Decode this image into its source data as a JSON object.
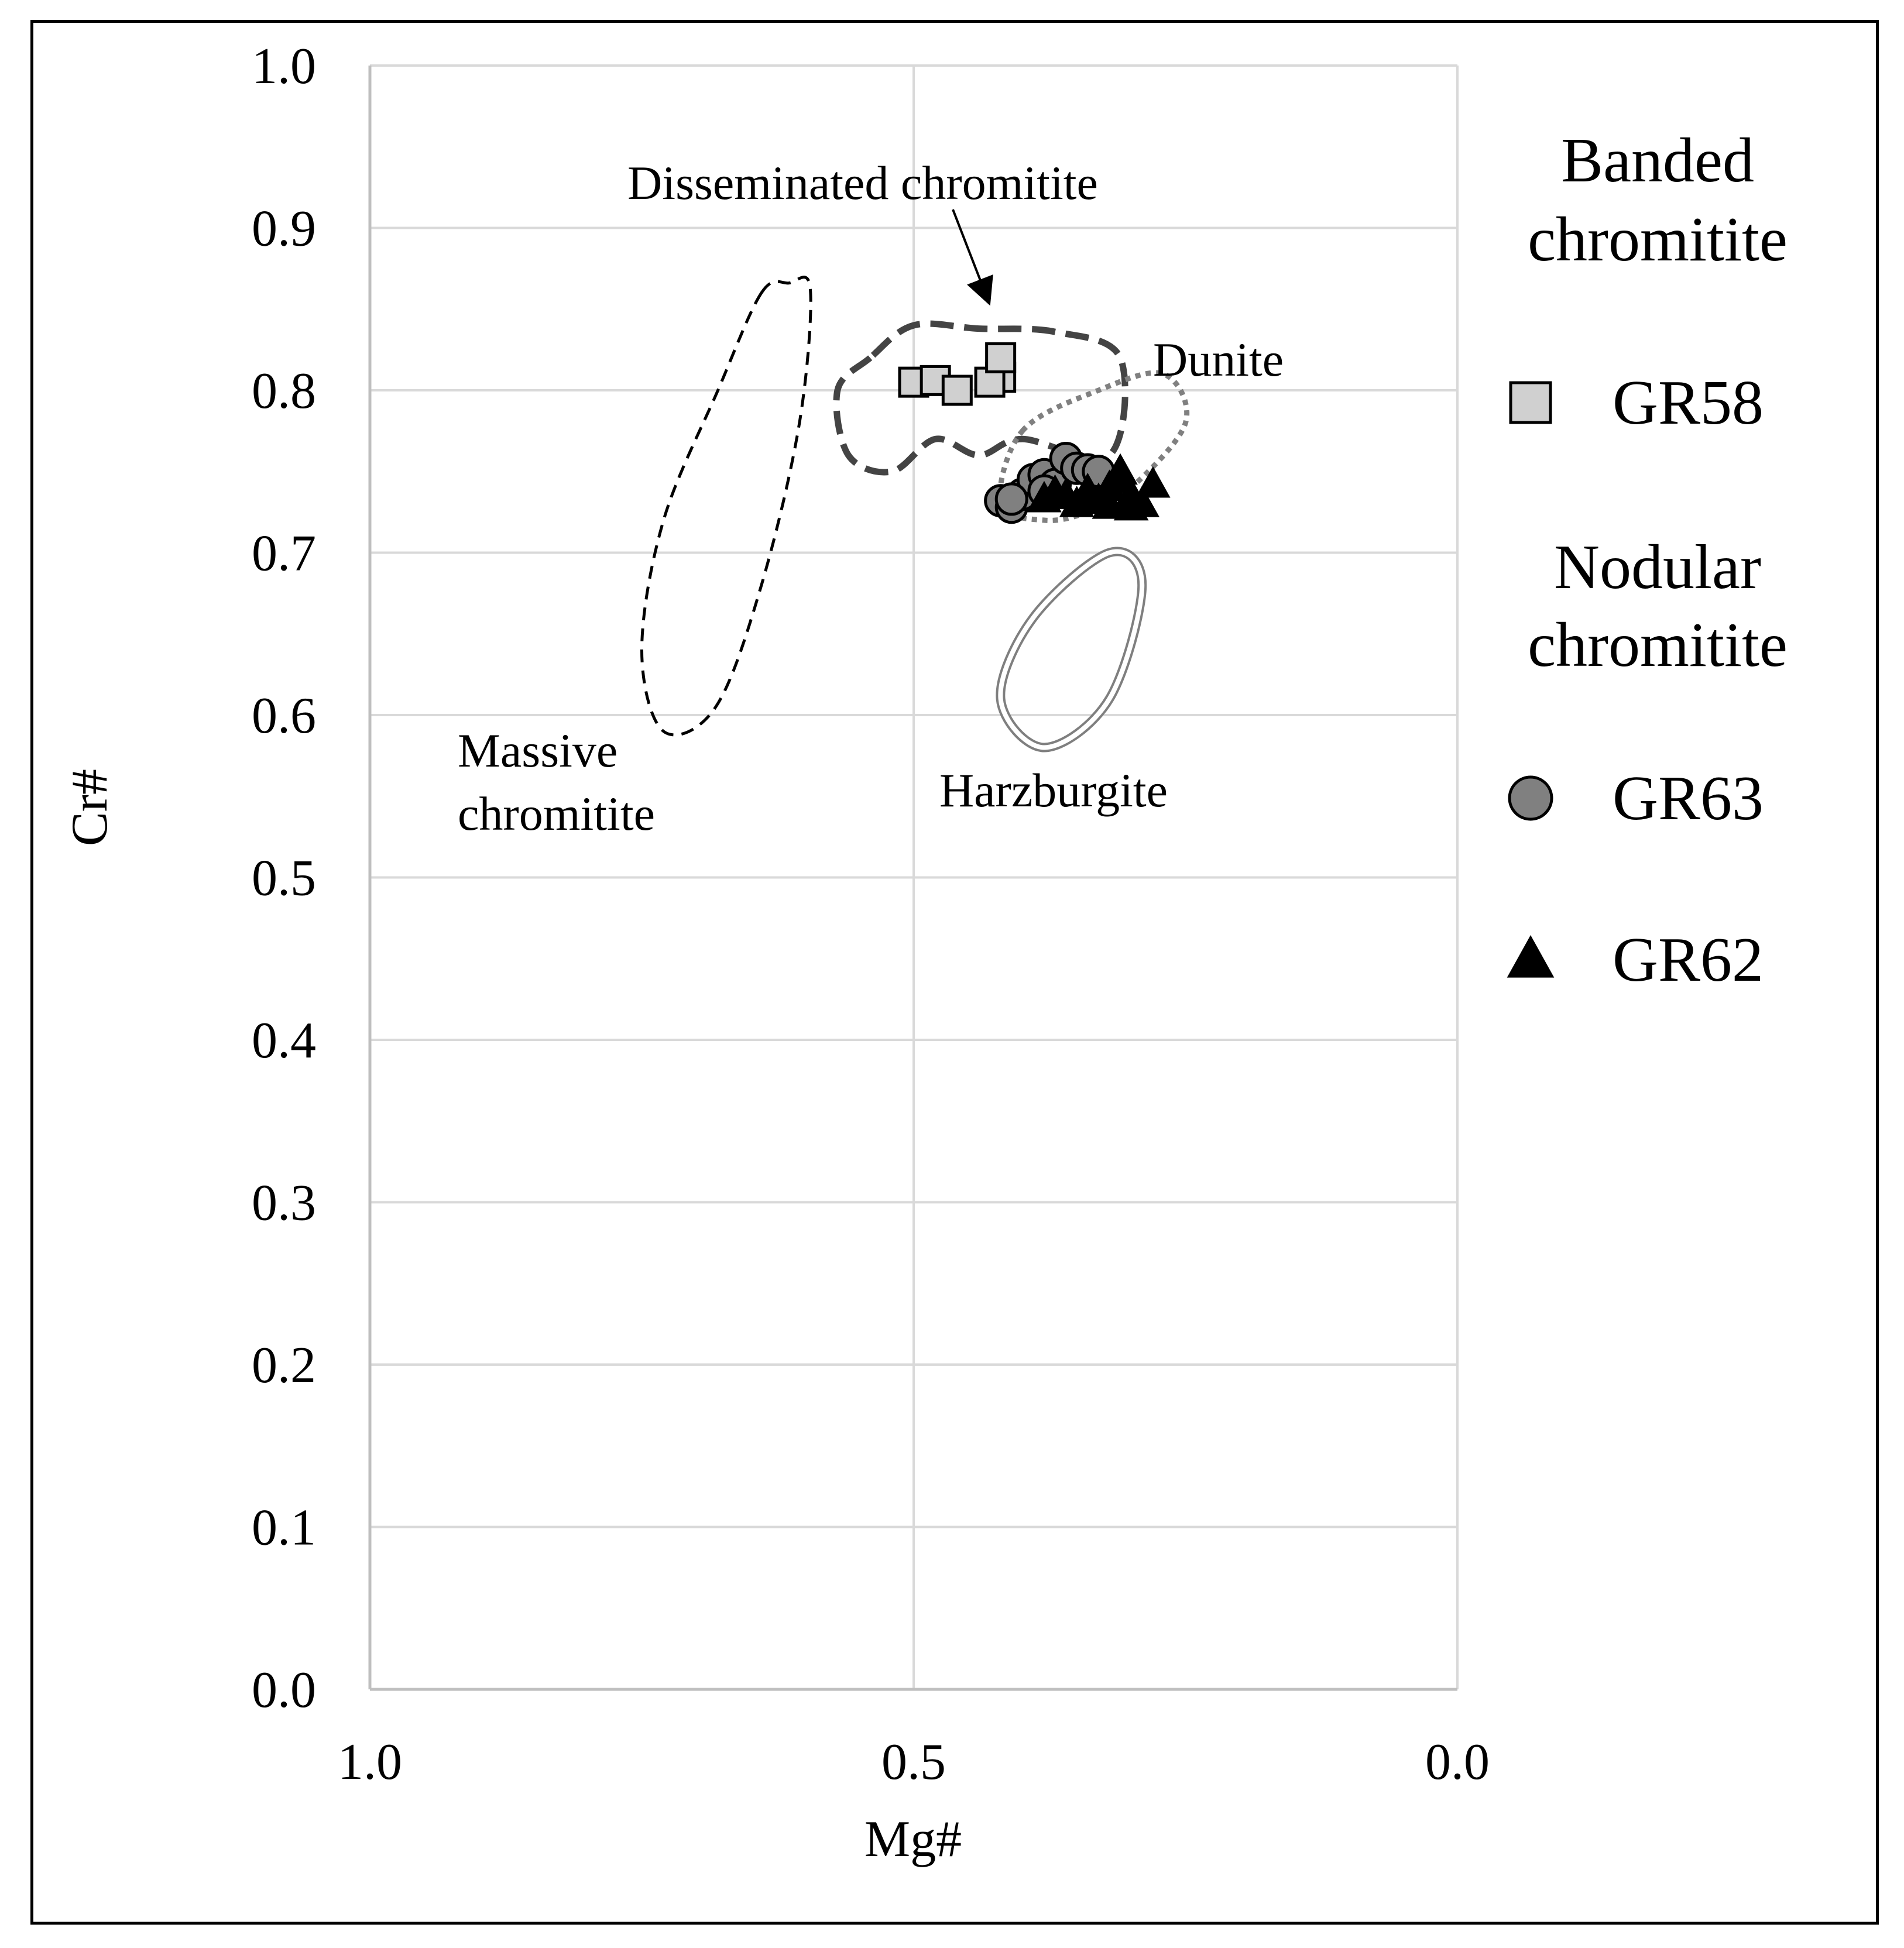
{
  "chart_data": {
    "type": "scatter",
    "title": "",
    "xlabel": "Mg#",
    "ylabel": "Cr#",
    "xlim": [
      1.0,
      0.0
    ],
    "ylim": [
      0.0,
      1.0
    ],
    "x_reversed": true,
    "x_ticks": [
      1.0,
      0.5,
      0.0
    ],
    "x_tick_labels": [
      "1.0",
      "0.5",
      "0.0"
    ],
    "y_ticks": [
      0.0,
      0.1,
      0.2,
      0.3,
      0.4,
      0.5,
      0.6,
      0.7,
      0.8,
      0.9,
      1.0
    ],
    "y_tick_labels": [
      "0.0",
      "0.1",
      "0.2",
      "0.3",
      "0.4",
      "0.5",
      "0.6",
      "0.7",
      "0.8",
      "0.9",
      "1.0"
    ],
    "grid": true,
    "legend": {
      "position": "right",
      "groups": [
        {
          "heading": [
            "Banded",
            "chromitite"
          ],
          "entries": [
            {
              "name": "GR58",
              "marker": "square",
              "color": "#d0d0d0"
            }
          ]
        },
        {
          "heading": [
            "Nodular",
            "chromitite"
          ],
          "entries": [
            {
              "name": "GR63",
              "marker": "circle",
              "color": "#808080"
            },
            {
              "name": "GR62",
              "marker": "triangle",
              "color": "#000000"
            }
          ]
        }
      ]
    },
    "series": [
      {
        "name": "GR58",
        "marker": "square",
        "color": "#d0d0d0",
        "x": [
          0.5,
          0.48,
          0.46,
          0.42,
          0.43,
          0.42
        ],
        "y": [
          0.805,
          0.806,
          0.8,
          0.808,
          0.805,
          0.82
        ]
      },
      {
        "name": "GR63",
        "marker": "circle",
        "color": "#808080",
        "x": [
          0.42,
          0.41,
          0.4,
          0.39,
          0.38,
          0.37,
          0.36,
          0.35,
          0.34,
          0.33,
          0.41,
          0.38
        ],
        "y": [
          0.732,
          0.728,
          0.736,
          0.745,
          0.748,
          0.742,
          0.758,
          0.752,
          0.751,
          0.75,
          0.733,
          0.738
        ]
      },
      {
        "name": "GR62",
        "marker": "triangle",
        "color": "#000000",
        "x": [
          0.38,
          0.37,
          0.36,
          0.35,
          0.34,
          0.33,
          0.32,
          0.31,
          0.3,
          0.29,
          0.28,
          0.32,
          0.3,
          0.31
        ],
        "y": [
          0.733,
          0.737,
          0.735,
          0.73,
          0.738,
          0.732,
          0.729,
          0.75,
          0.735,
          0.73,
          0.742,
          0.74,
          0.728,
          0.745
        ]
      }
    ],
    "fields": [
      {
        "name": "Massive chromitite",
        "label": [
          "Massive",
          "chromitite"
        ],
        "line": "dashed",
        "points": [
          [
            0.64,
            0.86
          ],
          [
            0.615,
            0.866
          ],
          [
            0.595,
            0.862
          ],
          [
            0.605,
            0.78
          ],
          [
            0.64,
            0.68
          ],
          [
            0.682,
            0.605
          ],
          [
            0.73,
            0.59
          ],
          [
            0.75,
            0.64
          ],
          [
            0.73,
            0.72
          ],
          [
            0.68,
            0.8
          ]
        ]
      },
      {
        "name": "Disseminated chromitite",
        "label": [
          "Disseminated chromitite"
        ],
        "line": "thick-dashed",
        "points": [
          [
            0.54,
            0.82
          ],
          [
            0.57,
            0.8
          ],
          [
            0.56,
            0.76
          ],
          [
            0.52,
            0.75
          ],
          [
            0.48,
            0.77
          ],
          [
            0.44,
            0.76
          ],
          [
            0.4,
            0.77
          ],
          [
            0.32,
            0.76
          ],
          [
            0.31,
            0.82
          ],
          [
            0.37,
            0.836
          ],
          [
            0.44,
            0.838
          ],
          [
            0.5,
            0.84
          ]
        ]
      },
      {
        "name": "Dunite",
        "label": [
          "Dunite"
        ],
        "line": "dotted",
        "points": [
          [
            0.4,
            0.775
          ],
          [
            0.33,
            0.8
          ],
          [
            0.27,
            0.81
          ],
          [
            0.25,
            0.78
          ],
          [
            0.3,
            0.74
          ],
          [
            0.34,
            0.725
          ],
          [
            0.38,
            0.72
          ],
          [
            0.42,
            0.73
          ]
        ]
      },
      {
        "name": "Harzburgite",
        "label": [
          "Harzburgite"
        ],
        "line": "double",
        "points": [
          [
            0.38,
            0.58
          ],
          [
            0.32,
            0.61
          ],
          [
            0.29,
            0.68
          ],
          [
            0.32,
            0.7
          ],
          [
            0.39,
            0.66
          ],
          [
            0.42,
            0.61
          ]
        ]
      }
    ],
    "annotations": [
      {
        "text": "Disseminated chromitite",
        "arrow": true
      }
    ]
  }
}
